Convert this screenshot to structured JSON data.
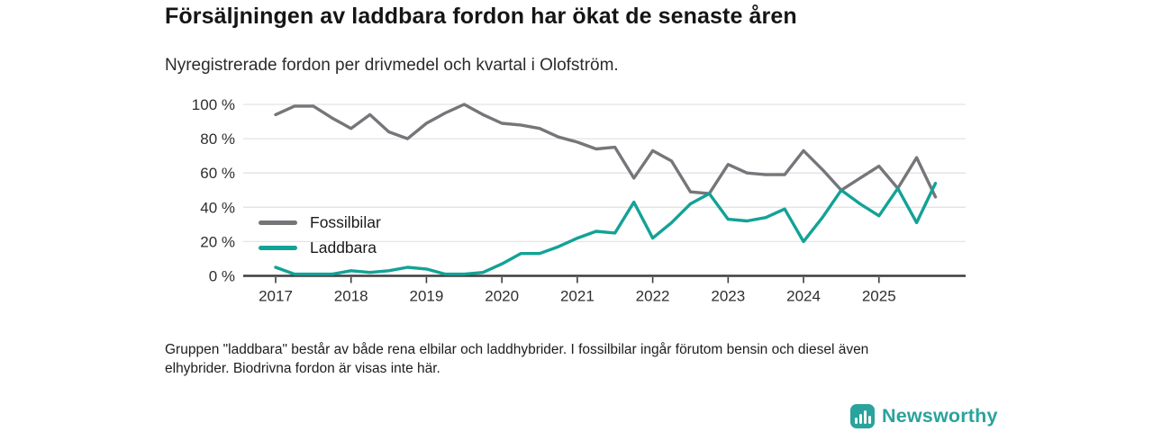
{
  "header": {
    "title": "Försäljningen av laddbara fordon har ökat de senaste åren",
    "subtitle": "Nyregistrerade fordon per drivmedel och kvartal i Olofström."
  },
  "chart_data": {
    "type": "line",
    "title": "Försäljningen av laddbara fordon har ökat de senaste åren",
    "subtitle": "Nyregistrerade fordon per drivmedel och kvartal i Olofström.",
    "x_unit": "quarter",
    "x": [
      "2017 Q1",
      "2017 Q2",
      "2017 Q3",
      "2017 Q4",
      "2018 Q1",
      "2018 Q2",
      "2018 Q3",
      "2018 Q4",
      "2019 Q1",
      "2019 Q2",
      "2019 Q3",
      "2019 Q4",
      "2020 Q1",
      "2020 Q2",
      "2020 Q3",
      "2020 Q4",
      "2021 Q1",
      "2021 Q2",
      "2021 Q3",
      "2021 Q4",
      "2022 Q1",
      "2022 Q2",
      "2022 Q3",
      "2022 Q4",
      "2023 Q1",
      "2023 Q2",
      "2023 Q3",
      "2023 Q4",
      "2024 Q1",
      "2024 Q2",
      "2024 Q3",
      "2024 Q4",
      "2025 Q1",
      "2025 Q2",
      "2025 Q3",
      "2025 Q4"
    ],
    "series": [
      {
        "name": "Fossilbilar",
        "color": "#76767a",
        "values": [
          94,
          99,
          99,
          92,
          86,
          94,
          84,
          80,
          89,
          95,
          100,
          94,
          89,
          88,
          86,
          81,
          78,
          74,
          75,
          57,
          73,
          67,
          49,
          48,
          65,
          60,
          59,
          59,
          73,
          62,
          50,
          57,
          64,
          51,
          69,
          46
        ]
      },
      {
        "name": "Laddbara",
        "color": "#13a296",
        "values": [
          5,
          1,
          1,
          1,
          3,
          2,
          3,
          5,
          4,
          1,
          1,
          2,
          7,
          13,
          13,
          17,
          22,
          26,
          25,
          43,
          22,
          31,
          42,
          48,
          33,
          32,
          34,
          39,
          20,
          34,
          50,
          42,
          35,
          51,
          31,
          54
        ]
      }
    ],
    "ylim": [
      0,
      100
    ],
    "yticks": [
      0,
      20,
      40,
      60,
      80,
      100
    ],
    "ytick_labels": [
      "0 %",
      "20 %",
      "40 %",
      "60 %",
      "80 %",
      "100 %"
    ],
    "xticks": [
      "2017",
      "2018",
      "2019",
      "2020",
      "2021",
      "2022",
      "2023",
      "2024",
      "2025"
    ],
    "grid": "horizontal",
    "legend_position": "inside-bottom-left"
  },
  "footnote": {
    "line1": "Gruppen \"laddbara\" består av både rena elbilar och laddhybrider. I fossilbilar ingår förutom bensin och diesel även",
    "line2": "elhybrider. Biodrivna fordon är visas inte här."
  },
  "logo": {
    "text": "Newsworthy",
    "icon": "bar-chart-icon",
    "color": "#2aa39c"
  }
}
